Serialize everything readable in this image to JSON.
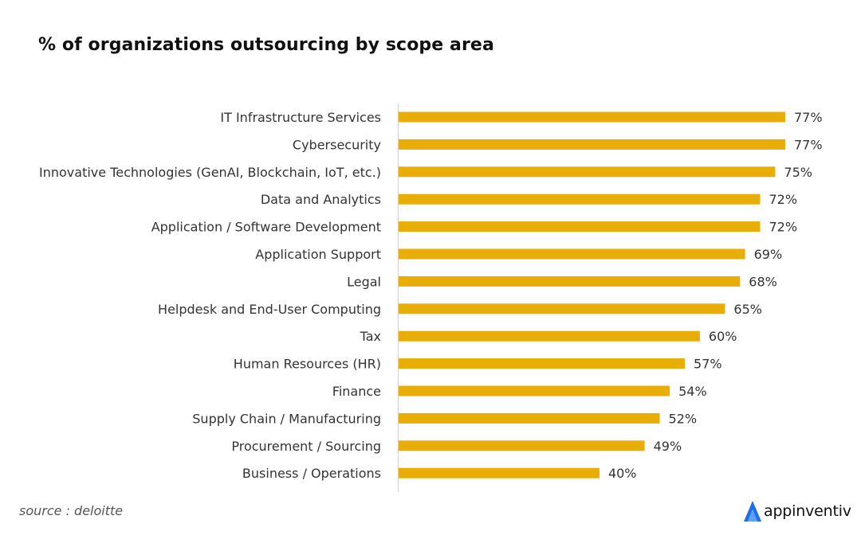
{
  "chart_data": {
    "type": "bar",
    "orientation": "horizontal",
    "title": "% of organizations outsourcing by scope area",
    "categories": [
      "IT Infrastructure Services",
      "Cybersecurity",
      "Innovative Technologies (GenAI, Blockchain, IoT, etc.)",
      "Data and Analytics",
      "Application / Software Development",
      "Application Support",
      "Legal",
      "Helpdesk and End-User Computing",
      "Tax",
      "Human Resources (HR)",
      "Finance",
      "Supply Chain / Manufacturing",
      "Procurement / Sourcing",
      "Business / Operations"
    ],
    "values": [
      77,
      77,
      75,
      72,
      72,
      69,
      68,
      65,
      60,
      57,
      54,
      52,
      49,
      40
    ],
    "value_labels": [
      "77%",
      "77%",
      "75%",
      "72%",
      "72%",
      "69%",
      "68%",
      "65%",
      "60%",
      "57%",
      "54%",
      "52%",
      "49%",
      "40%"
    ],
    "xlim": [
      0,
      77
    ],
    "xlabel": "",
    "ylabel": "",
    "grid": false,
    "bar_color": "#E8AE07"
  },
  "footer": {
    "source": "source : deloitte",
    "brand": "appinventiv"
  },
  "colors": {
    "bar": "#E8AE07",
    "brand_logo": "#1E6FE8",
    "axis": "#D0D0D0"
  }
}
